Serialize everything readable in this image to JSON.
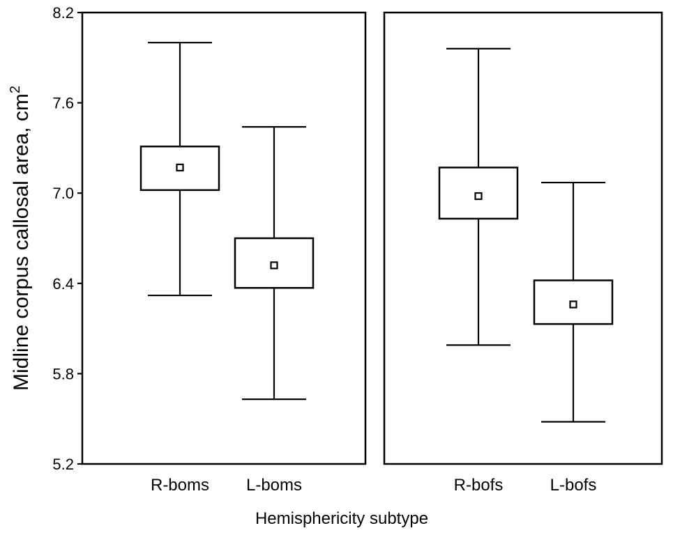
{
  "chart_data": {
    "type": "box",
    "ylabel": "Midline corpus callosal area, cm",
    "ylabel_superscript": "2",
    "xlabel": "Hemisphericity subtype",
    "ylim": [
      5.2,
      8.2
    ],
    "yticks": [
      "8.2",
      "7.6",
      "7.0",
      "6.4",
      "5.8",
      "5.2"
    ],
    "panels": [
      {
        "categories": [
          "R-boms",
          "L-boms"
        ],
        "boxes": [
          {
            "name": "R-boms",
            "whisker_low": 6.32,
            "box_low": 7.02,
            "mean": 7.17,
            "box_high": 7.31,
            "whisker_high": 8.0
          },
          {
            "name": "L-boms",
            "whisker_low": 5.63,
            "box_low": 6.37,
            "mean": 6.52,
            "box_high": 6.7,
            "whisker_high": 7.44
          }
        ]
      },
      {
        "categories": [
          "R-bofs",
          "L-bofs"
        ],
        "boxes": [
          {
            "name": "R-bofs",
            "whisker_low": 5.99,
            "box_low": 6.83,
            "mean": 6.98,
            "box_high": 7.17,
            "whisker_high": 7.96
          },
          {
            "name": "L-bofs",
            "whisker_low": 5.48,
            "box_low": 6.13,
            "mean": 6.26,
            "box_high": 6.42,
            "whisker_high": 7.07
          }
        ]
      }
    ]
  }
}
